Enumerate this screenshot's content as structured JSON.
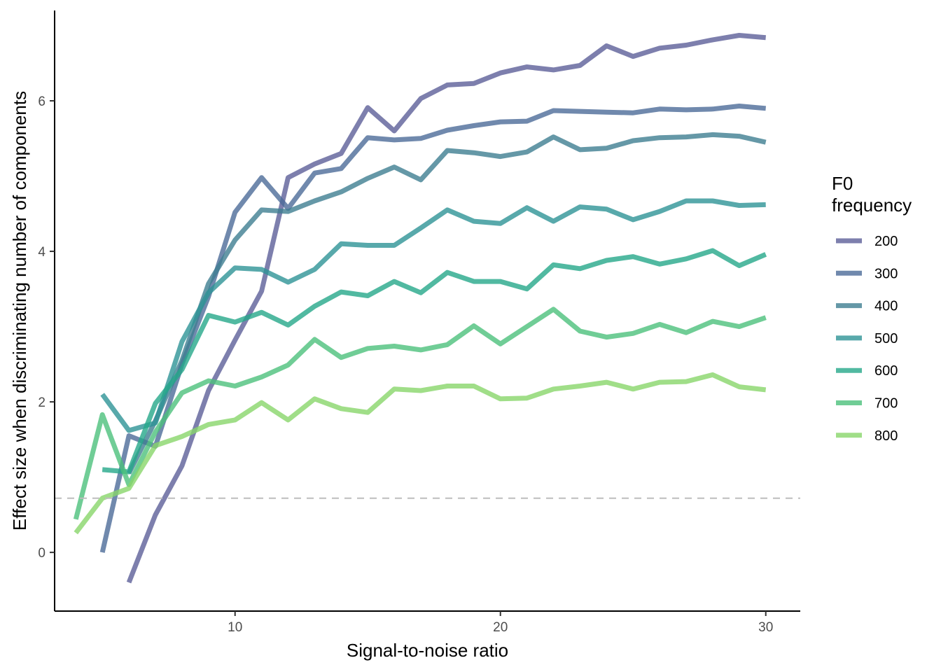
{
  "chart_data": {
    "type": "line",
    "xlabel": "Signal-to-noise ratio",
    "ylabel": "Effect size when discriminating number of components",
    "xlim": [
      3.2,
      31.3
    ],
    "ylim": [
      -0.78,
      7.2
    ],
    "x_ticks": [
      10,
      20,
      30
    ],
    "y_ticks": [
      0,
      2,
      4,
      6
    ],
    "reference_line": {
      "y": 0.72,
      "style": "dashed",
      "color": "#bdbdbd"
    },
    "grid": false,
    "legend": {
      "title_lines": [
        "F0",
        "frequency"
      ],
      "position": "right"
    },
    "series": [
      {
        "name": "200",
        "color": "#5c5f98",
        "x": [
          6,
          7,
          8,
          9,
          10,
          11,
          12,
          13,
          14,
          15,
          16,
          17,
          18,
          19,
          20,
          21,
          22,
          23,
          24,
          25,
          26,
          27,
          28,
          29,
          30
        ],
        "values": [
          -0.4,
          0.5,
          1.15,
          2.15,
          2.82,
          3.47,
          4.98,
          5.16,
          5.3,
          5.91,
          5.6,
          6.03,
          6.21,
          6.23,
          6.37,
          6.45,
          6.41,
          6.47,
          6.73,
          6.59,
          6.7,
          6.74,
          6.81,
          6.87,
          6.84
        ]
      },
      {
        "name": "300",
        "color": "#4c6b98",
        "x": [
          5,
          6,
          7,
          8,
          9,
          10,
          11,
          12,
          13,
          14,
          15,
          16,
          17,
          18,
          19,
          20,
          21,
          22,
          23,
          24,
          25,
          26,
          27,
          28,
          29,
          30
        ],
        "values": [
          0.0,
          1.55,
          1.41,
          2.5,
          3.4,
          4.52,
          4.98,
          4.57,
          5.04,
          5.1,
          5.51,
          5.48,
          5.5,
          5.61,
          5.67,
          5.72,
          5.73,
          5.87,
          5.86,
          5.85,
          5.84,
          5.89,
          5.88,
          5.89,
          5.93,
          5.9
        ]
      },
      {
        "name": "400",
        "color": "#3f7e91",
        "x": [
          6,
          7,
          8,
          9,
          10,
          11,
          12,
          13,
          14,
          15,
          16,
          17,
          18,
          19,
          20,
          21,
          22,
          23,
          24,
          25,
          26,
          27,
          28,
          29,
          30
        ],
        "values": [
          1.05,
          1.75,
          2.55,
          3.57,
          4.15,
          4.55,
          4.53,
          4.67,
          4.79,
          4.97,
          5.12,
          4.95,
          5.34,
          5.31,
          5.26,
          5.32,
          5.52,
          5.35,
          5.37,
          5.47,
          5.51,
          5.52,
          5.55,
          5.53,
          5.45
        ]
      },
      {
        "name": "500",
        "color": "#2e9496",
        "x": [
          5,
          6,
          7,
          8,
          9,
          10,
          11,
          12,
          13,
          14,
          15,
          16,
          17,
          18,
          19,
          20,
          21,
          22,
          23,
          24,
          25,
          26,
          27,
          28,
          29,
          30
        ],
        "values": [
          2.1,
          1.62,
          1.72,
          2.8,
          3.45,
          3.78,
          3.76,
          3.59,
          3.76,
          4.1,
          4.08,
          4.08,
          4.31,
          4.55,
          4.4,
          4.37,
          4.58,
          4.4,
          4.59,
          4.56,
          4.42,
          4.53,
          4.67,
          4.67,
          4.61,
          4.62
        ]
      },
      {
        "name": "600",
        "color": "#26a88a",
        "x": [
          5,
          6,
          7,
          8,
          9,
          10,
          11,
          12,
          13,
          14,
          15,
          16,
          17,
          18,
          19,
          20,
          21,
          22,
          23,
          24,
          25,
          26,
          27,
          28,
          29,
          30
        ],
        "values": [
          1.1,
          1.07,
          1.98,
          2.43,
          3.15,
          3.06,
          3.19,
          3.02,
          3.27,
          3.46,
          3.41,
          3.6,
          3.45,
          3.72,
          3.6,
          3.6,
          3.5,
          3.82,
          3.77,
          3.88,
          3.93,
          3.83,
          3.9,
          4.01,
          3.81,
          3.96
        ]
      },
      {
        "name": "700",
        "color": "#4cc07c",
        "x": [
          4,
          5,
          6,
          7,
          8,
          9,
          10,
          11,
          12,
          13,
          14,
          15,
          16,
          17,
          18,
          19,
          20,
          21,
          22,
          23,
          24,
          25,
          26,
          27,
          28,
          29,
          30
        ],
        "values": [
          0.44,
          1.83,
          0.9,
          1.6,
          2.12,
          2.28,
          2.21,
          2.33,
          2.49,
          2.83,
          2.59,
          2.71,
          2.74,
          2.69,
          2.76,
          3.01,
          2.77,
          3.0,
          3.23,
          2.94,
          2.86,
          2.91,
          3.03,
          2.92,
          3.07,
          3.0,
          3.12
        ]
      },
      {
        "name": "800",
        "color": "#88d66a",
        "x": [
          4,
          5,
          6,
          7,
          8,
          9,
          10,
          11,
          12,
          13,
          14,
          15,
          16,
          17,
          18,
          19,
          20,
          21,
          22,
          23,
          24,
          25,
          26,
          27,
          28,
          29,
          30
        ],
        "values": [
          0.26,
          0.72,
          0.85,
          1.42,
          1.54,
          1.7,
          1.76,
          1.99,
          1.76,
          2.04,
          1.91,
          1.86,
          2.17,
          2.15,
          2.21,
          2.21,
          2.04,
          2.05,
          2.17,
          2.21,
          2.26,
          2.17,
          2.26,
          2.27,
          2.36,
          2.2,
          2.16
        ]
      }
    ]
  }
}
